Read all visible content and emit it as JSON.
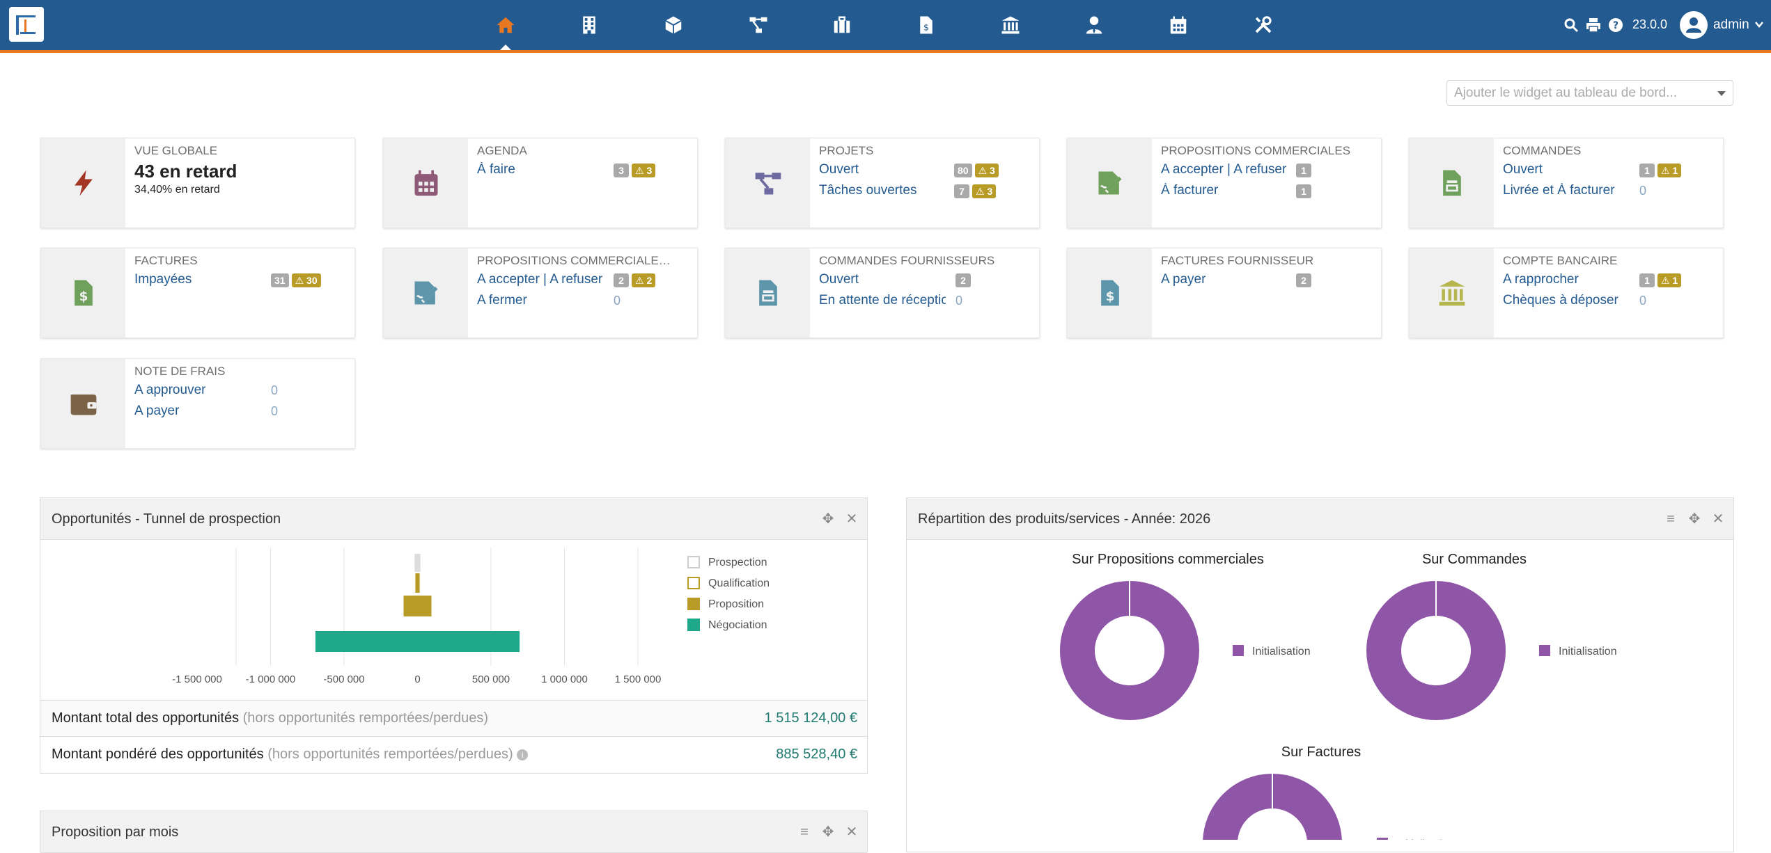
{
  "topbar": {
    "version": "23.0.0",
    "user": "admin",
    "nav_icons": [
      "home-icon",
      "building-icon",
      "cube-icon",
      "project-icon",
      "briefcase-icon",
      "invoice-icon",
      "bank-icon",
      "user-tie-icon",
      "calendar-icon",
      "tools-icon"
    ],
    "tools": [
      "search-icon",
      "print-icon",
      "help-icon"
    ]
  },
  "widget_select": {
    "placeholder": "Ajouter le widget au tableau de bord..."
  },
  "boxes": {
    "global": {
      "title": "Vue globale",
      "big": "43 en retard",
      "small": "34,40% en retard"
    },
    "agenda": {
      "title": "Agenda",
      "lines": [
        {
          "label": "À faire",
          "badge": "3",
          "warn": "3"
        }
      ]
    },
    "projets": {
      "title": "Projets",
      "lines": [
        {
          "label": "Ouvert",
          "badge": "80",
          "warn": "3"
        },
        {
          "label": "Tâches ouvertes",
          "badge": "7",
          "warn": "3"
        }
      ]
    },
    "propositions": {
      "title": "Propositions commerciales",
      "lines": [
        {
          "label": "A accepter | A refuser",
          "badge": "1"
        },
        {
          "label": "À facturer",
          "badge": "1"
        }
      ]
    },
    "commandes": {
      "title": "Commandes",
      "lines": [
        {
          "label": "Ouvert",
          "badge": "1",
          "warn": "1"
        },
        {
          "label": "Livrée et À facturer",
          "zero": "0"
        }
      ]
    },
    "factures": {
      "title": "Factures",
      "lines": [
        {
          "label": "Impayées",
          "badge": "31",
          "warn": "30"
        }
      ]
    },
    "propositions_f": {
      "title": "Propositions commerciale…",
      "lines": [
        {
          "label": "A accepter | A refuser",
          "badge": "2",
          "warn": "2"
        },
        {
          "label": "A fermer",
          "zero": "0"
        }
      ]
    },
    "commandes_f": {
      "title": "Commandes fournisseurs",
      "lines": [
        {
          "label": "Ouvert",
          "badge": "2"
        },
        {
          "label": "En attente de réceptio",
          "zero": "0"
        }
      ]
    },
    "factures_f": {
      "title": "Factures fournisseur",
      "lines": [
        {
          "label": "A payer",
          "badge": "2"
        }
      ]
    },
    "banque": {
      "title": "Compte bancaire",
      "lines": [
        {
          "label": "A rapprocher",
          "badge": "1",
          "warn": "1"
        },
        {
          "label": "Chèques à déposer",
          "zero": "0"
        }
      ]
    },
    "frais": {
      "title": "Note de frais",
      "lines": [
        {
          "label": "A approuver",
          "zero": "0"
        },
        {
          "label": "A payer",
          "zero": "0"
        }
      ]
    }
  },
  "panels": {
    "opportunites": {
      "title": "Opportunités - Tunnel de prospection",
      "total_label": "Montant total des opportunités",
      "total_note": "(hors opportunités remportées/perdues)",
      "total_value": "1 515 124,00 €",
      "weighted_label": "Montant pondéré des opportunités",
      "weighted_note": "(hors opportunités remportées/perdues)",
      "weighted_value": "885 528,40 €"
    },
    "repartition": {
      "title": "Répartition des produits/services - Année: 2026",
      "charts": [
        "Sur Propositions commerciales",
        "Sur Commandes",
        "Sur Factures"
      ],
      "legend": "Initialisation"
    },
    "proposition_mois": {
      "title": "Proposition par mois"
    }
  },
  "chart_data": [
    {
      "type": "bar",
      "orientation": "horizontal-funnel",
      "categories": [
        "Prospection",
        "Qualification",
        "Proposition",
        "Négociation"
      ],
      "values": [
        15000,
        10000,
        90000,
        690000
      ],
      "xlim": [
        -1500000,
        1500000
      ],
      "x_ticks": [
        "-1 500 000",
        "-1 000 000",
        "-500 000",
        "0",
        "500 000",
        "1 000 000",
        "1 500 000"
      ],
      "colors": [
        "#dddddd",
        "#b99c27",
        "#b99c27",
        "#1fa88a"
      ],
      "legend": "right",
      "grid": true
    },
    {
      "type": "pie",
      "title": "Sur Propositions commerciales",
      "labels": [
        "Initialisation"
      ],
      "values": [
        100
      ],
      "colors": [
        "#8f55a6"
      ]
    },
    {
      "type": "pie",
      "title": "Sur Commandes",
      "labels": [
        "Initialisation"
      ],
      "values": [
        100
      ],
      "colors": [
        "#8f55a6"
      ]
    },
    {
      "type": "pie",
      "title": "Sur Factures",
      "labels": [
        "Initialisation"
      ],
      "values": [
        100
      ],
      "colors": [
        "#8f55a6"
      ]
    }
  ]
}
